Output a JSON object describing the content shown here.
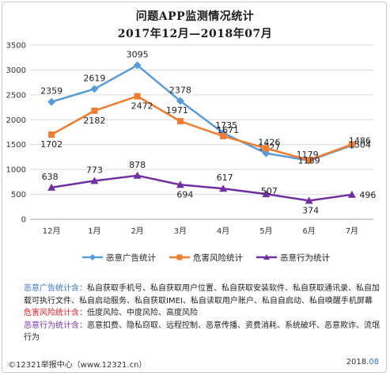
{
  "chart_data": {
    "type": "line",
    "title": "问题APP监测情况统计",
    "subtitle": "2017年12月—2018年07月",
    "categories": [
      "12月",
      "1月",
      "2月",
      "3月",
      "4月",
      "5月",
      "6月",
      "7月"
    ],
    "ylim": [
      0,
      3500
    ],
    "yticks": [
      0,
      500,
      1000,
      1500,
      2000,
      2500,
      3000,
      3500
    ],
    "grid": true,
    "legend_position": "bottom",
    "series": [
      {
        "name": "恶意广告统计",
        "color": "#5b9bd5",
        "marker": "diamond",
        "values": [
          2359,
          2619,
          3095,
          2378,
          1735,
          1327,
          1179,
          1486
        ]
      },
      {
        "name": "危害风险统计",
        "color": "#ed7d31",
        "marker": "square",
        "values": [
          1702,
          2182,
          2472,
          1971,
          1671,
          1426,
          1189,
          1504
        ]
      },
      {
        "name": "恶意行为统计",
        "color": "#7030a0",
        "marker": "triangle",
        "values": [
          638,
          773,
          878,
          694,
          617,
          507,
          374,
          496
        ]
      }
    ]
  },
  "notes": [
    {
      "label": "恶意广告统计含：",
      "text": "私自获取手机号、私自获取用户位置、私自获取安装软件、私自获取通讯录、私自加载可执行文件、私自启动服务、私自获取IMEI、私自读取用户账户、私自自启动、私自唤醒手机屏幕"
    },
    {
      "label": "危害风险统计含：",
      "text": "低度风险、中度风险、高度风险"
    },
    {
      "label": "恶意行为统计含：",
      "text": "恶意扣费、隐私窃取、远程控制、恶意传播、资费消耗、系统破坏、恶意欺诈、流氓行为"
    }
  ],
  "footer": {
    "left": "©12321举报中心（www.12321.cn）",
    "right_year": "2018.",
    "right_month": "08"
  }
}
